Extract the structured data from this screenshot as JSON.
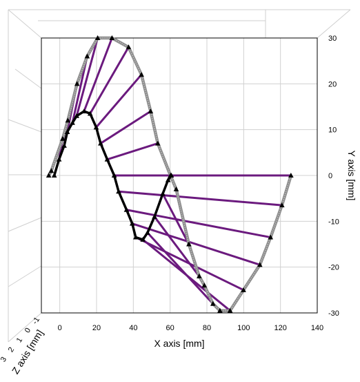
{
  "chart_data": {
    "type": "line",
    "title": "",
    "xlabel": "X axis [mm]",
    "ylabel": "Y axis [mm]",
    "zlabel": "Z axis [mm]",
    "xlim": [
      -10,
      140
    ],
    "ylim": [
      -30,
      30
    ],
    "xticks": [
      "0",
      "20",
      "40",
      "60",
      "80",
      "100",
      "120",
      "140"
    ],
    "yticks": [
      "30",
      "20",
      "10",
      "0",
      "-10",
      "-20",
      "-30"
    ],
    "zticks": [
      "3",
      "2",
      "1",
      "0",
      "-1"
    ],
    "grid": true,
    "legend": "none",
    "colors": {
      "outer_curve": "#8a8a8a",
      "inner_curve": "#000000",
      "connectors": "#6b1a7e",
      "markers": "#000000",
      "grid": "#d0d0d0",
      "frame": "#000000"
    },
    "series": [
      {
        "role": "outer",
        "x": [
          -6,
          -4.6,
          1.6,
          4.4,
          9.4,
          14.9,
          20.6,
          28.4,
          37.4,
          44.4,
          49.4,
          53.3,
          60.2,
          63.3,
          70.2,
          75.8,
          78.6,
          83.3,
          87.1,
          92.6,
          99.9,
          108.8,
          114.6,
          120.8,
          125.7
        ],
        "y": [
          0,
          1,
          8,
          12,
          20,
          26,
          30,
          30,
          28,
          22,
          14,
          7,
          0,
          -3,
          -15,
          -22,
          -24,
          -28,
          -29.5,
          -29.5,
          -25,
          -19.5,
          -13.5,
          -6.5,
          0
        ]
      },
      {
        "role": "inner",
        "x": [
          -3,
          -0.4,
          2.4,
          4.1,
          6.9,
          9.2,
          13.2,
          16.5,
          19.8,
          22.2,
          25.8,
          29.6,
          32.0,
          36.3,
          39.4,
          41.3,
          45.2,
          47.7,
          51.5,
          56.0,
          58.9,
          60.7
        ],
        "y": [
          0,
          3.5,
          6.5,
          9.5,
          11.5,
          13,
          14,
          13.5,
          10.5,
          7,
          3.5,
          0,
          -3.5,
          -7.5,
          -10.5,
          -13.5,
          -14,
          -12.5,
          -9,
          -4,
          -1,
          0
        ]
      }
    ],
    "connectors": [
      {
        "from": [
          -0.4,
          3.5
        ],
        "to": [
          1.6,
          8
        ]
      },
      {
        "from": [
          2.4,
          6.5
        ],
        "to": [
          4.4,
          12
        ]
      },
      {
        "from": [
          4.1,
          9.5
        ],
        "to": [
          9.4,
          20
        ]
      },
      {
        "from": [
          6.9,
          11.5
        ],
        "to": [
          14.9,
          26
        ]
      },
      {
        "from": [
          9.2,
          13
        ],
        "to": [
          20.6,
          30
        ]
      },
      {
        "from": [
          13.2,
          14
        ],
        "to": [
          28.4,
          30
        ]
      },
      {
        "from": [
          16.5,
          13.5
        ],
        "to": [
          37.4,
          28
        ]
      },
      {
        "from": [
          19.8,
          10.5
        ],
        "to": [
          44.4,
          22
        ]
      },
      {
        "from": [
          22.2,
          7
        ],
        "to": [
          49.4,
          14
        ]
      },
      {
        "from": [
          25.8,
          3.5
        ],
        "to": [
          53.3,
          7
        ]
      },
      {
        "from": [
          29.6,
          0
        ],
        "to": [
          125.7,
          0
        ]
      },
      {
        "from": [
          32.0,
          -3.5
        ],
        "to": [
          120.8,
          -6.5
        ]
      },
      {
        "from": [
          36.3,
          -7.5
        ],
        "to": [
          114.6,
          -13.5
        ]
      },
      {
        "from": [
          39.4,
          -10.5
        ],
        "to": [
          108.8,
          -19.5
        ]
      },
      {
        "from": [
          41.3,
          -13.5
        ],
        "to": [
          99.9,
          -25
        ]
      },
      {
        "from": [
          45.2,
          -14
        ],
        "to": [
          92.6,
          -29.5
        ]
      },
      {
        "from": [
          47.7,
          -12.5
        ],
        "to": [
          83.3,
          -28
        ]
      },
      {
        "from": [
          51.5,
          -9
        ],
        "to": [
          75.8,
          -22
        ]
      },
      {
        "from": [
          56.0,
          -4
        ],
        "to": [
          70.2,
          -15
        ]
      },
      {
        "from": [
          60.2,
          0
        ],
        "to": [
          60.2,
          0
        ]
      }
    ]
  }
}
